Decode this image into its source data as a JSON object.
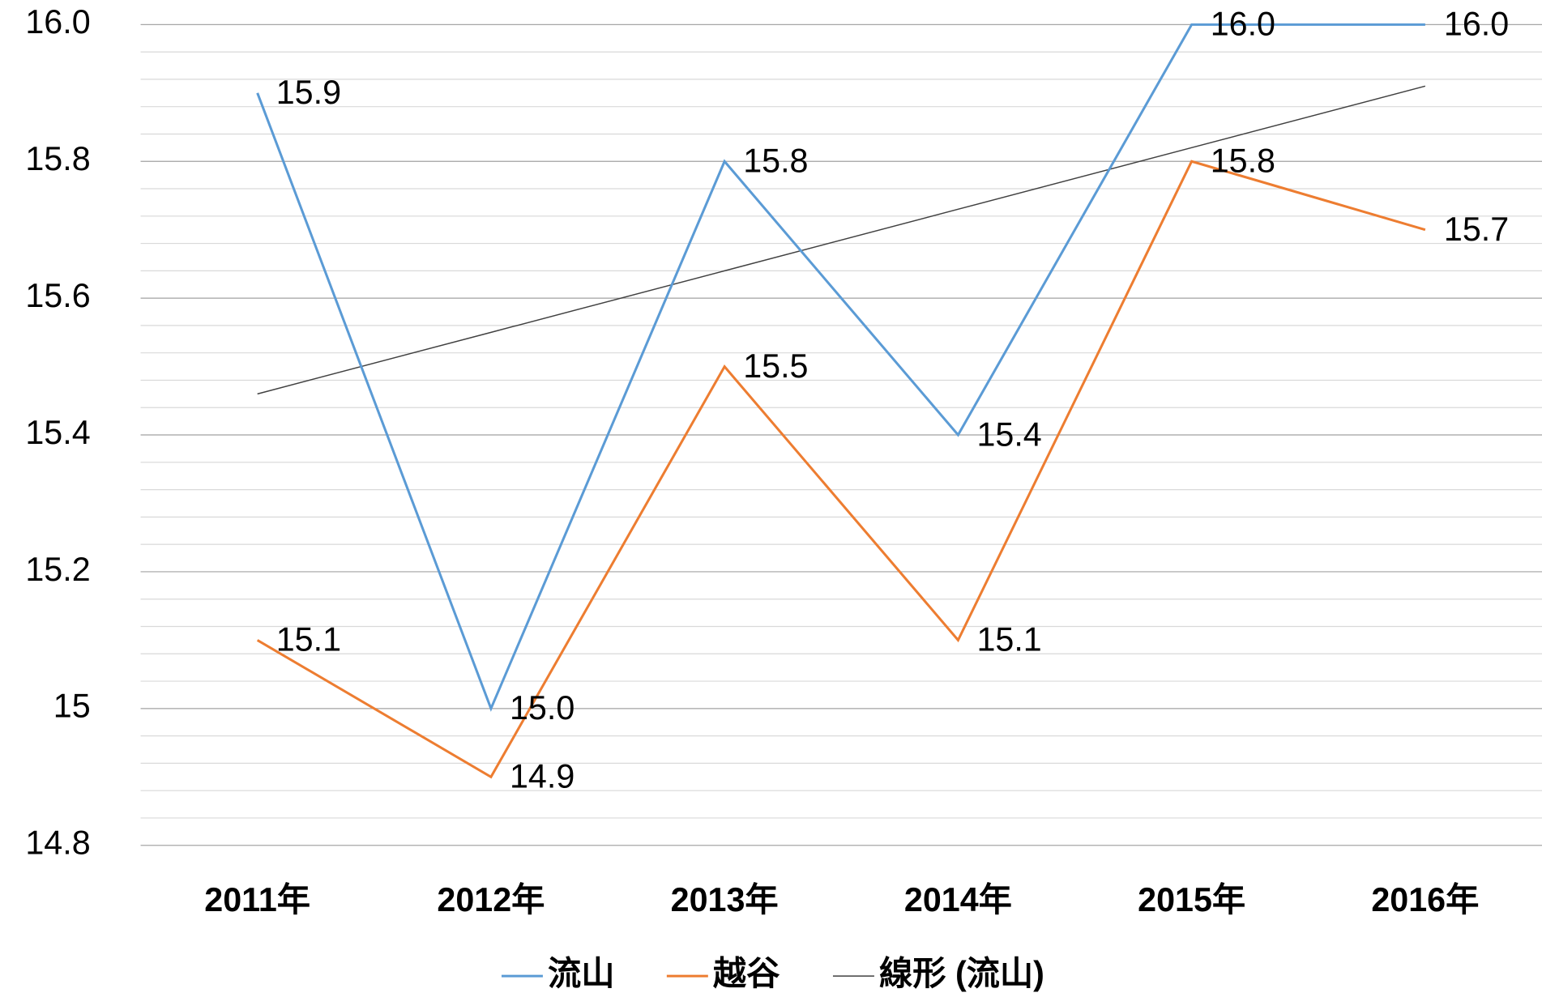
{
  "chart_data": {
    "type": "line",
    "categories": [
      "2011年",
      "2012年",
      "2013年",
      "2014年",
      "2015年",
      "2016年"
    ],
    "series": [
      {
        "name": "流山",
        "color": "#5b9bd5",
        "values": [
          15.9,
          15.0,
          15.8,
          15.4,
          16.0,
          16.0
        ],
        "value_labels": [
          "15.9",
          "15.0",
          "15.8",
          "15.4",
          "16.0",
          "16.0"
        ]
      },
      {
        "name": "越谷",
        "color": "#ed7d31",
        "values": [
          15.1,
          14.9,
          15.5,
          15.1,
          15.8,
          15.7
        ],
        "value_labels": [
          "15.1",
          "14.9",
          "15.5",
          "15.1",
          "15.8",
          "15.7"
        ]
      }
    ],
    "trendline": {
      "name": "線形 (流山)",
      "color": "#404040",
      "values": [
        15.46,
        15.55,
        15.64,
        15.73,
        15.82,
        15.91
      ]
    },
    "ylim": [
      14.8,
      16.0
    ],
    "yticks": [
      {
        "value": 14.8,
        "label": "14.8"
      },
      15.0,
      15.2,
      15.4,
      15.6,
      15.8,
      {
        "value": 16.0,
        "label": "16.0"
      }
    ],
    "minor_grid_step": 0.04,
    "grid": true,
    "legend": "bottom"
  }
}
